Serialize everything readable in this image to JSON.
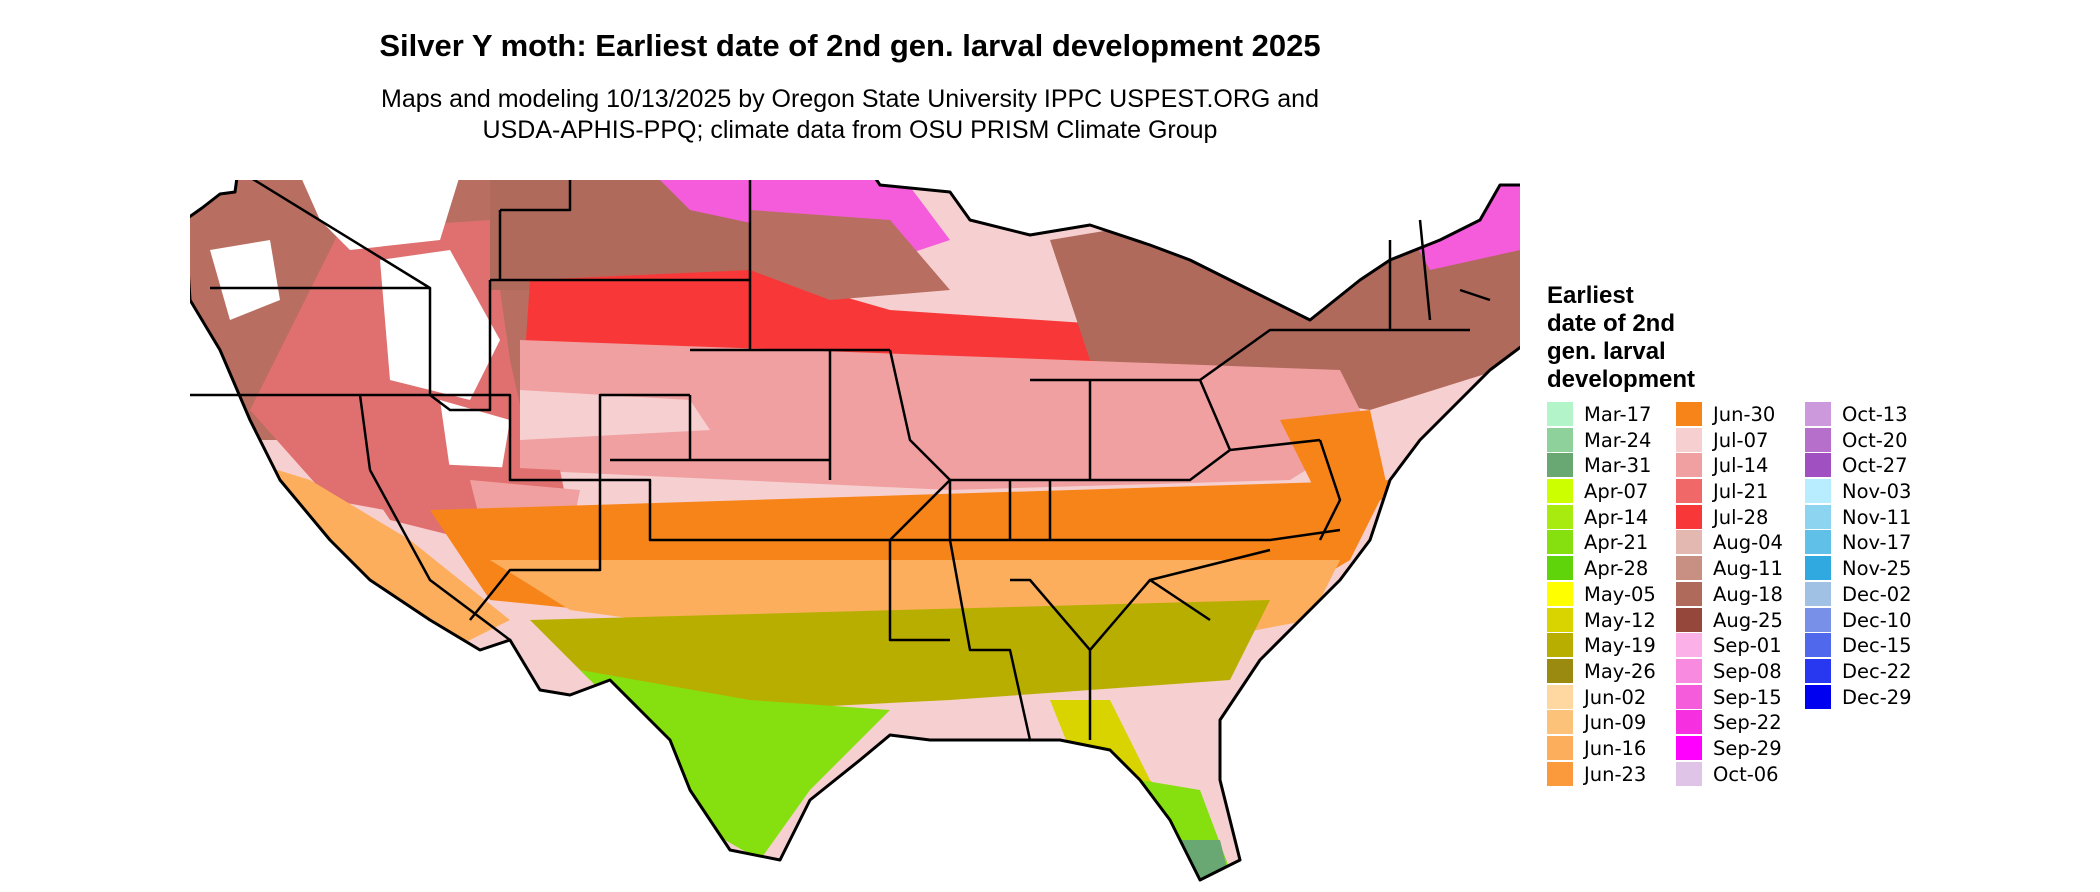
{
  "title": "Silver Y moth: Earliest date of 2nd gen. larval development 2025",
  "subtitle_line1": "Maps and modeling 10/13/2025 by Oregon State University IPPC USPEST.ORG and",
  "subtitle_line2": "USDA-APHIS-PPQ; climate data from OSU PRISM Climate Group",
  "legend": {
    "title": "Earliest\ndate of 2nd\ngen. larval\ndevelopment",
    "columns": [
      [
        {
          "label": "Mar-17",
          "color": "#b3f5c8"
        },
        {
          "label": "Mar-24",
          "color": "#8fd19a"
        },
        {
          "label": "Mar-31",
          "color": "#6aa873"
        },
        {
          "label": "Apr-07",
          "color": "#ccff00"
        },
        {
          "label": "Apr-14",
          "color": "#a8ec0f"
        },
        {
          "label": "Apr-21",
          "color": "#86e00f"
        },
        {
          "label": "Apr-28",
          "color": "#5fd40a"
        },
        {
          "label": "May-05",
          "color": "#ffff00"
        },
        {
          "label": "May-12",
          "color": "#d9d400"
        },
        {
          "label": "May-19",
          "color": "#b8ae00"
        },
        {
          "label": "May-26",
          "color": "#9a8a10"
        },
        {
          "label": "Jun-02",
          "color": "#fed8a0"
        },
        {
          "label": "Jun-09",
          "color": "#fdc27a"
        },
        {
          "label": "Jun-16",
          "color": "#fcae5c"
        },
        {
          "label": "Jun-23",
          "color": "#fa9a3c"
        }
      ],
      [
        {
          "label": "Jun-30",
          "color": "#f78419"
        },
        {
          "label": "Jul-07",
          "color": "#f6d0d0"
        },
        {
          "label": "Jul-14",
          "color": "#f0a0a0"
        },
        {
          "label": "Jul-21",
          "color": "#f06868"
        },
        {
          "label": "Jul-28",
          "color": "#f83838"
        },
        {
          "label": "Aug-04",
          "color": "#e3b8b0"
        },
        {
          "label": "Aug-11",
          "color": "#c89082"
        },
        {
          "label": "Aug-18",
          "color": "#b06a5c"
        },
        {
          "label": "Aug-25",
          "color": "#94473a"
        },
        {
          "label": "Sep-01",
          "color": "#fbb0e8"
        },
        {
          "label": "Sep-08",
          "color": "#f88ae0"
        },
        {
          "label": "Sep-15",
          "color": "#f55cdb"
        },
        {
          "label": "Sep-22",
          "color": "#f630e0"
        },
        {
          "label": "Sep-29",
          "color": "#ff00ff"
        },
        {
          "label": "Oct-06",
          "color": "#e0c4e8"
        }
      ],
      [
        {
          "label": "Oct-13",
          "color": "#cc99dd"
        },
        {
          "label": "Oct-20",
          "color": "#b670cc"
        },
        {
          "label": "Oct-27",
          "color": "#a050c0"
        },
        {
          "label": "Nov-03",
          "color": "#b8ecff"
        },
        {
          "label": "Nov-11",
          "color": "#8cd4f0"
        },
        {
          "label": "Nov-17",
          "color": "#60c0e8"
        },
        {
          "label": "Nov-25",
          "color": "#30a8e0"
        },
        {
          "label": "Dec-02",
          "color": "#a0c0e4"
        },
        {
          "label": "Dec-10",
          "color": "#7890e8"
        },
        {
          "label": "Dec-15",
          "color": "#5068ec"
        },
        {
          "label": "Dec-22",
          "color": "#2838f0"
        },
        {
          "label": "Dec-29",
          "color": "#0000f0"
        }
      ]
    ]
  },
  "map_colors": {
    "unsuitable": "#ffffff",
    "northwest": "#b86e60",
    "mountains": "#e07070",
    "midwest_red": "#f83838",
    "corn_belt": "#f0a0a0",
    "plains": "#f6d0d0",
    "south": "#f78419",
    "southeast": "#fcae5c",
    "gulf": "#b8ae00",
    "coast": "#86e00f",
    "florida": "#d9d400",
    "desert": "#ffff00",
    "lakes": "#f55cdb",
    "north_lake": "#b06a5c",
    "tip": "#6aa873",
    "border": "#000000"
  }
}
